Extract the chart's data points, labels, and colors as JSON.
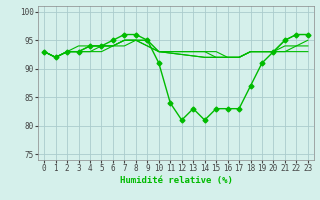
{
  "background_color": "#d5f0eb",
  "grid_color": "#aacccc",
  "line_color": "#00bb00",
  "series": [
    {
      "x": [
        0,
        1,
        2,
        3,
        4,
        5,
        6,
        7,
        8,
        9,
        10,
        11,
        12,
        13,
        14,
        15,
        16,
        17,
        18,
        19,
        20,
        21,
        22,
        23
      ],
      "y": [
        93,
        92,
        93,
        93,
        94,
        94,
        95,
        96,
        96,
        95,
        91,
        84,
        81,
        83,
        81,
        83,
        83,
        83,
        87,
        91,
        93,
        95,
        96,
        96
      ],
      "marker": "D",
      "ms": 2.5,
      "lw": 1.0
    },
    {
      "x": [
        0,
        1,
        2,
        3,
        4,
        5,
        6,
        7,
        8,
        9,
        10,
        14,
        15,
        16,
        17,
        18,
        19,
        20,
        21,
        22,
        23
      ],
      "y": [
        93,
        92,
        93,
        93,
        94,
        94,
        94,
        95,
        95,
        94,
        93,
        92,
        92,
        92,
        92,
        93,
        93,
        93,
        93,
        93,
        93
      ],
      "marker": null,
      "ms": 0,
      "lw": 0.8
    },
    {
      "x": [
        0,
        1,
        2,
        3,
        4,
        5,
        6,
        7,
        8,
        9,
        10,
        14,
        15,
        16,
        17,
        18,
        19,
        20,
        21,
        22,
        23
      ],
      "y": [
        93,
        92,
        93,
        94,
        94,
        94,
        94,
        95,
        95,
        95,
        93,
        93,
        93,
        92,
        92,
        93,
        93,
        93,
        95,
        96,
        96
      ],
      "marker": null,
      "ms": 0,
      "lw": 0.8
    },
    {
      "x": [
        0,
        1,
        2,
        3,
        4,
        5,
        6,
        7,
        8,
        9,
        10,
        14,
        15,
        16,
        17,
        18,
        19,
        20,
        21,
        22,
        23
      ],
      "y": [
        93,
        92,
        93,
        93,
        93,
        93,
        94,
        94,
        95,
        94,
        93,
        93,
        92,
        92,
        92,
        93,
        93,
        93,
        93,
        94,
        94
      ],
      "marker": null,
      "ms": 0,
      "lw": 0.8
    },
    {
      "x": [
        0,
        1,
        2,
        3,
        4,
        5,
        6,
        7,
        8,
        9,
        10,
        14,
        15,
        16,
        17,
        18,
        19,
        20,
        21,
        22,
        23
      ],
      "y": [
        93,
        92,
        93,
        93,
        93,
        94,
        94,
        95,
        95,
        95,
        93,
        92,
        92,
        92,
        92,
        93,
        93,
        93,
        94,
        94,
        95
      ],
      "marker": null,
      "ms": 0,
      "lw": 0.8
    }
  ],
  "xlabel": "Humidité relative (%)",
  "xlim": [
    -0.5,
    23.5
  ],
  "ylim": [
    74,
    101
  ],
  "yticks": [
    75,
    80,
    85,
    90,
    95,
    100
  ],
  "xticks": [
    0,
    1,
    2,
    3,
    4,
    5,
    6,
    7,
    8,
    9,
    10,
    11,
    12,
    13,
    14,
    15,
    16,
    17,
    18,
    19,
    20,
    21,
    22,
    23
  ],
  "xlabel_fontsize": 6.5,
  "tick_fontsize": 5.5
}
